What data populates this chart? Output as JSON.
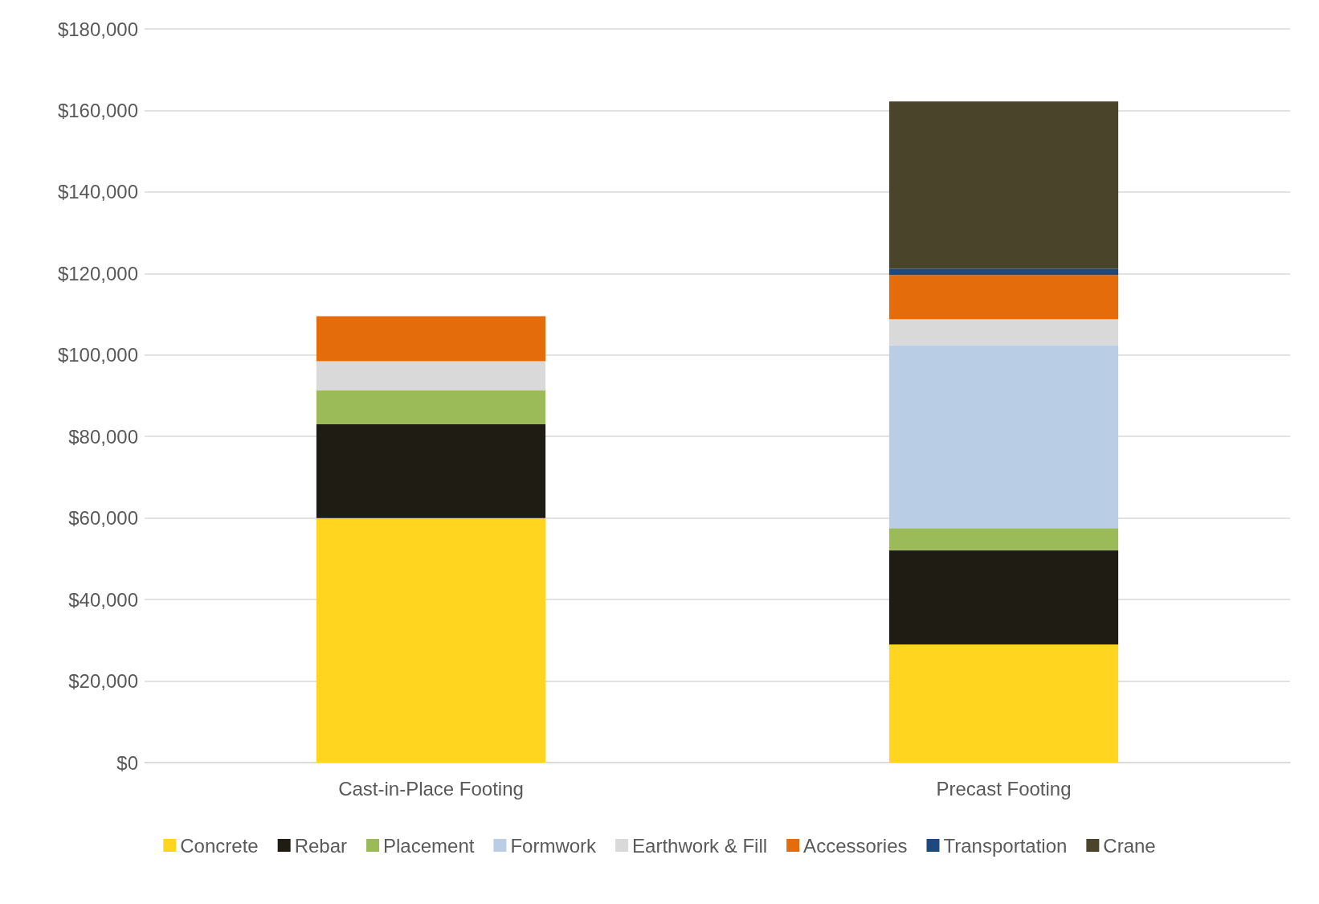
{
  "chart_data": {
    "type": "bar",
    "stacked": true,
    "categories": [
      "Cast-in-Place Footing",
      "Precast Footing"
    ],
    "series": [
      {
        "name": "Concrete",
        "color": "#ffd520",
        "values": [
          60000,
          29000
        ]
      },
      {
        "name": "Rebar",
        "color": "#1f1d13",
        "values": [
          23000,
          23100
        ]
      },
      {
        "name": "Placement",
        "color": "#9bbb59",
        "values": [
          8400,
          5400
        ]
      },
      {
        "name": "Formwork",
        "color": "#b9cde5",
        "values": [
          0,
          44900
        ]
      },
      {
        "name": "Earthwork & Fill",
        "color": "#d9d9d9",
        "values": [
          7100,
          6400
        ]
      },
      {
        "name": "Accessories",
        "color": "#e46c0a",
        "values": [
          11000,
          10800
        ]
      },
      {
        "name": "Transportation",
        "color": "#1f497d",
        "values": [
          0,
          1600
        ]
      },
      {
        "name": "Crane",
        "color": "#4a452a",
        "values": [
          0,
          41000
        ]
      }
    ],
    "ylim": [
      0,
      180000
    ],
    "yticks": [
      {
        "value": 0,
        "label": "$0"
      },
      {
        "value": 20000,
        "label": "$20,000"
      },
      {
        "value": 40000,
        "label": "$40,000"
      },
      {
        "value": 60000,
        "label": "$60,000"
      },
      {
        "value": 80000,
        "label": "$80,000"
      },
      {
        "value": 100000,
        "label": "$100,000"
      },
      {
        "value": 120000,
        "label": "$120,000"
      },
      {
        "value": 140000,
        "label": "$140,000"
      },
      {
        "value": 160000,
        "label": "$160,000"
      },
      {
        "value": 180000,
        "label": "$180,000"
      }
    ],
    "grid": "y",
    "legend": "bottom"
  }
}
